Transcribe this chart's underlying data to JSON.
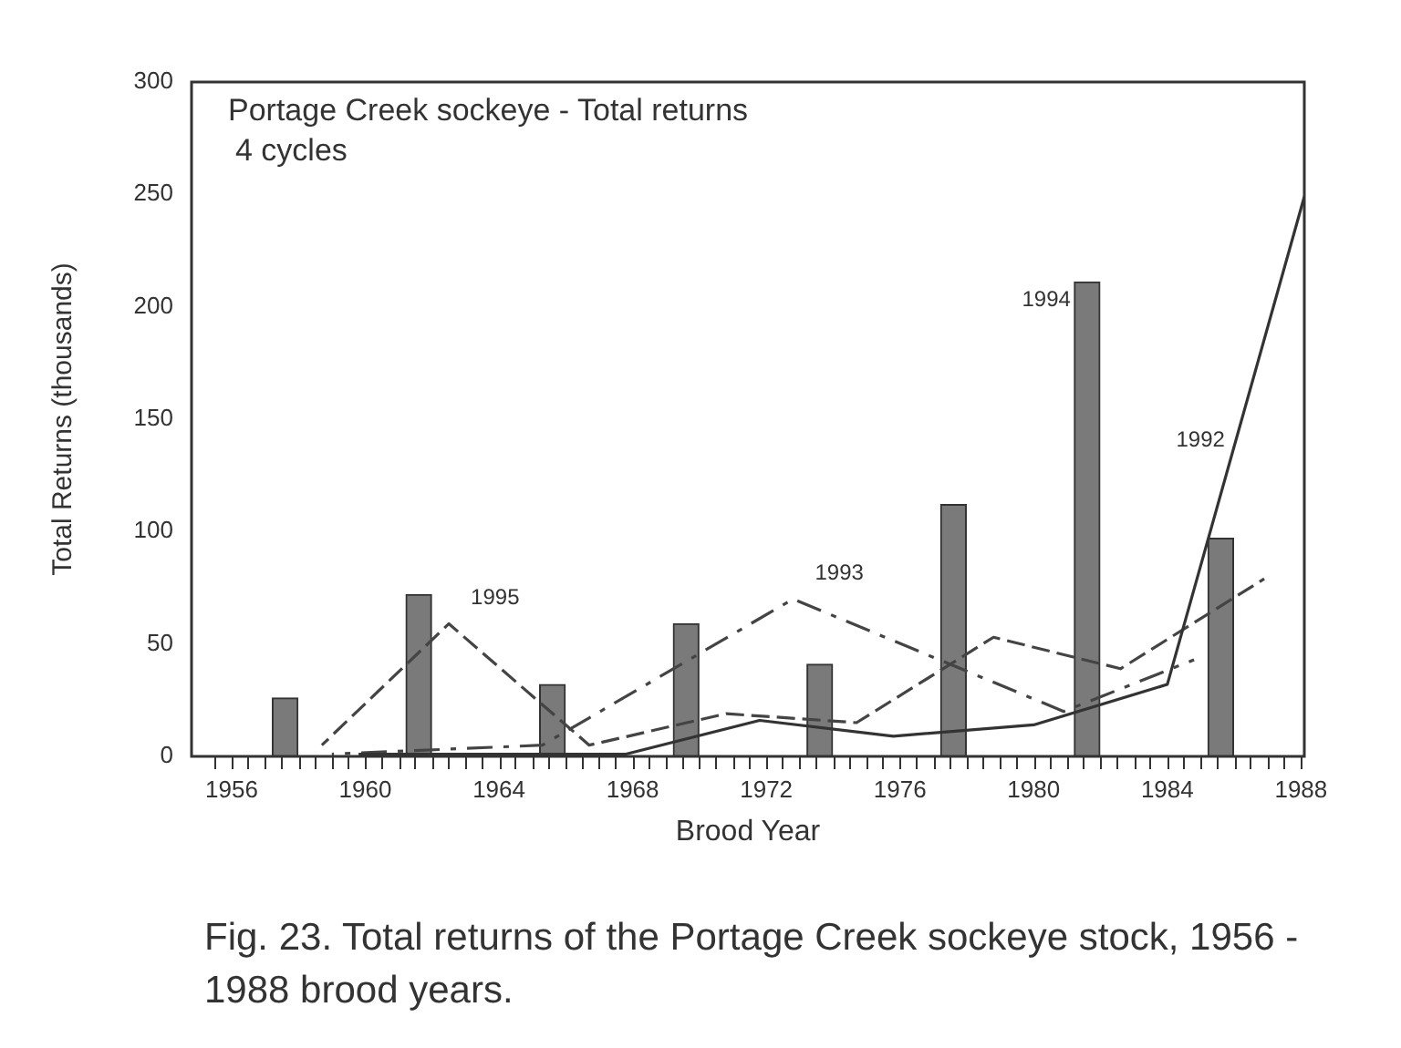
{
  "chart_data": {
    "type": "line",
    "title": "Portage Creek sockeye - Total returns",
    "subtitle": "4 cycles",
    "xlabel": "Brood Year",
    "ylabel": "Total Returns (thousands)",
    "xlim": [
      1954.8,
      1988.1
    ],
    "ylim": [
      0,
      300
    ],
    "xticks": [
      1956,
      {
        "value": 1957,
        "label": null
      },
      {
        "value": 1958,
        "label": null
      },
      {
        "value": 1959,
        "label": null
      },
      1960,
      {
        "value": 1961,
        "label": null
      },
      {
        "value": 1962,
        "label": null
      },
      {
        "value": 1963,
        "label": null
      },
      1964,
      {
        "value": 1965,
        "label": null
      },
      {
        "value": 1966,
        "label": null
      },
      {
        "value": 1967,
        "label": null
      },
      1968,
      {
        "value": 1969,
        "label": null
      },
      {
        "value": 1970,
        "label": null
      },
      {
        "value": 1971,
        "label": null
      },
      1972,
      {
        "value": 1973,
        "label": null
      },
      {
        "value": 1974,
        "label": null
      },
      {
        "value": 1975,
        "label": null
      },
      1976,
      {
        "value": 1977,
        "label": null
      },
      {
        "value": 1978,
        "label": null
      },
      {
        "value": 1979,
        "label": null
      },
      1980,
      {
        "value": 1981,
        "label": null
      },
      {
        "value": 1982,
        "label": null
      },
      {
        "value": 1983,
        "label": null
      },
      1984,
      {
        "value": 1985,
        "label": null
      },
      {
        "value": 1986,
        "label": null
      },
      {
        "value": 1987,
        "label": null
      },
      1988
    ],
    "yticks": [
      0,
      50,
      100,
      150,
      200,
      250,
      300
    ],
    "grid": false,
    "legend": false,
    "marker": "none",
    "series": [
      {
        "type": "bar",
        "name": "1994",
        "color": "#7a7a7a",
        "x": [
          1957.6,
          1961.6,
          1965.6,
          1969.6,
          1973.6,
          1977.6,
          1981.6,
          1985.6
        ],
        "values": [
          26,
          72,
          32,
          59,
          41,
          112,
          211,
          97
        ]
      },
      {
        "name": "1992",
        "color": "#333333",
        "line_style": "solid",
        "x": [
          1959.8,
          1963.8,
          1967.8,
          1971.8,
          1975.8,
          1980.0,
          1984.0,
          1988.1
        ],
        "values": [
          1,
          1,
          1,
          16,
          9,
          14,
          32,
          249
        ]
      },
      {
        "name": "1993",
        "color": "#444444",
        "line_style": "dashdot",
        "x": [
          1959.0,
          1965.3,
          1972.8,
          1980.9,
          1984.8
        ],
        "values": [
          1,
          5,
          70,
          20,
          43
        ]
      },
      {
        "name": "1995",
        "color": "#444444",
        "line_style": "dashed",
        "x": [
          1958.7,
          1962.5,
          1966.7,
          1970.8,
          1974.7,
          1978.8,
          1982.6,
          1986.9
        ],
        "values": [
          5,
          59,
          5,
          19,
          15,
          53,
          39,
          79
        ]
      }
    ],
    "annotations": [
      "Fig. 23. Total returns of the Portage Creek sockeye stock, 1956 - 1988 brood years."
    ]
  }
}
